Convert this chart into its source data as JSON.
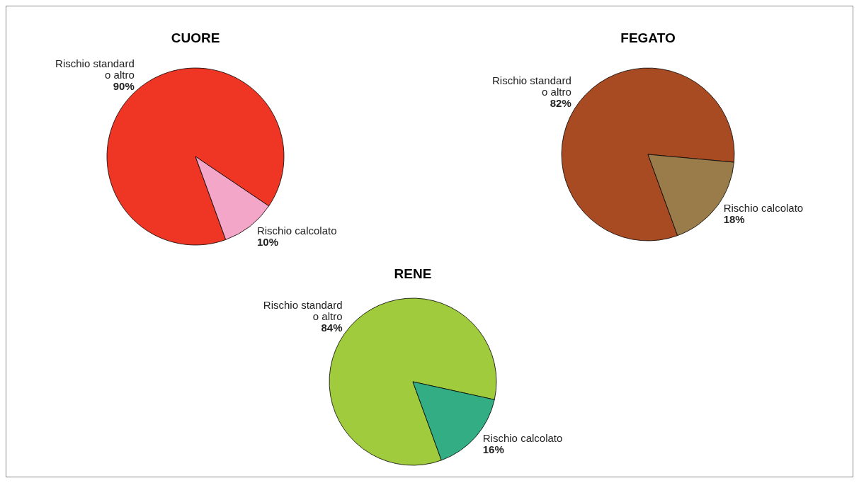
{
  "chart_data": [
    {
      "type": "pie",
      "title": "CUORE",
      "categories": [
        "Rischio standard\no altro",
        "Rischio calcolato"
      ],
      "values": [
        90,
        10
      ],
      "value_labels": [
        "90%",
        "10%"
      ],
      "colors": [
        "#ef3524",
        "#f4a6c8"
      ]
    },
    {
      "type": "pie",
      "title": "FEGATO",
      "categories": [
        "Rischio standard\no altro",
        "Rischio calcolato"
      ],
      "values": [
        82,
        18
      ],
      "value_labels": [
        "82%",
        "18%"
      ],
      "colors": [
        "#a84b22",
        "#9a7b4a"
      ]
    },
    {
      "type": "pie",
      "title": "RENE",
      "categories": [
        "Rischio standard\no altro",
        "Rischio calcolato"
      ],
      "values": [
        84,
        16
      ],
      "value_labels": [
        "84%",
        "16%"
      ],
      "colors": [
        "#a0cb3c",
        "#33ae84"
      ]
    }
  ]
}
